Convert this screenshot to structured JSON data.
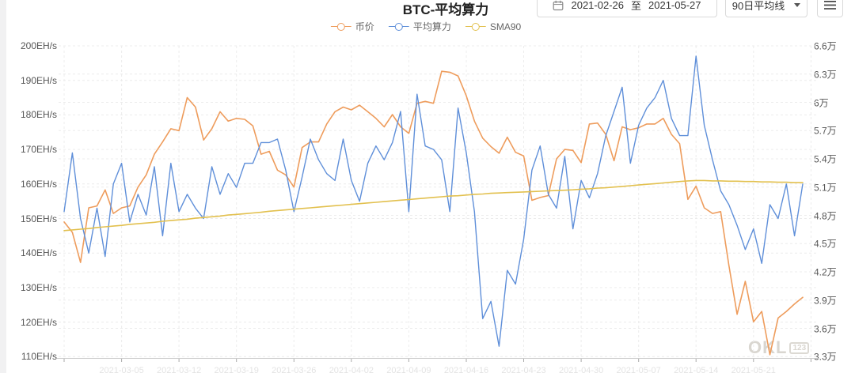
{
  "header": {
    "title": "BTC-平均算力",
    "date_picker": {
      "start": "2021-02-26",
      "separator": "至",
      "end": "2021-05-27"
    },
    "ma_selector": {
      "value": "90日平均线"
    }
  },
  "legend": [
    {
      "label": "币价",
      "color": "#EE9C5C"
    },
    {
      "label": "平均算力",
      "color": "#5F8FD9"
    },
    {
      "label": "SMA90",
      "color": "#E2C04E"
    }
  ],
  "watermark": {
    "text": "OKL",
    "badge": "123"
  },
  "chart_data": {
    "type": "line",
    "title": "BTC-平均算力",
    "x_start": "2021-02-26",
    "x_end": "2021-05-27",
    "x_points": 91,
    "x_tick_dates": [
      "2021-02-26",
      "2021-03-05",
      "2021-03-12",
      "2021-03-19",
      "2021-03-26",
      "2021-04-02",
      "2021-04-09",
      "2021-04-16",
      "2021-04-23",
      "2021-04-30",
      "2021-05-07",
      "2021-05-14",
      "2021-05-21",
      "2021-05-28"
    ],
    "grid": "dashed horizontal lines for both y axes, dashed weekly vertical lines",
    "legend_position": "top-center",
    "left_axis": {
      "unit": "EH/s",
      "min": 110,
      "max": 200,
      "tick_labels": [
        "200EH/s",
        "190EH/s",
        "180EH/s",
        "170EH/s",
        "160EH/s",
        "150EH/s",
        "140EH/s",
        "130EH/s",
        "120EH/s",
        "110EH/s"
      ]
    },
    "right_axis": {
      "unit": "万",
      "min": 3.3,
      "max": 6.6,
      "tick_labels": [
        "6.6万",
        "6.3万",
        "6万",
        "5.7万",
        "5.4万",
        "5.1万",
        "4.8万",
        "4.5万",
        "4.2万",
        "3.9万",
        "3.6万",
        "3.3万"
      ]
    },
    "series": [
      {
        "name": "币价",
        "axis": "right",
        "color": "#EE9C5C",
        "width": 1.6,
        "values": [
          4.73,
          4.62,
          4.3,
          4.88,
          4.9,
          5.07,
          4.82,
          4.88,
          4.9,
          5.1,
          5.23,
          5.45,
          5.58,
          5.72,
          5.7,
          6.05,
          5.95,
          5.6,
          5.72,
          5.9,
          5.8,
          5.83,
          5.82,
          5.75,
          5.45,
          5.48,
          5.28,
          5.23,
          5.1,
          5.52,
          5.58,
          5.58,
          5.77,
          5.9,
          5.95,
          5.92,
          5.97,
          5.9,
          5.83,
          5.74,
          5.87,
          5.74,
          5.67,
          5.99,
          6.01,
          5.99,
          6.33,
          6.32,
          6.28,
          6.07,
          5.8,
          5.62,
          5.53,
          5.46,
          5.63,
          5.47,
          5.43,
          4.96,
          4.99,
          5.01,
          5.4,
          5.5,
          5.49,
          5.36,
          5.77,
          5.78,
          5.66,
          5.38,
          5.74,
          5.71,
          5.73,
          5.77,
          5.77,
          5.83,
          5.66,
          5.56,
          4.97,
          5.11,
          4.88,
          4.82,
          4.84,
          4.27,
          3.75,
          4.1,
          3.67,
          3.78,
          3.32,
          3.71,
          3.78,
          3.86,
          3.93
        ]
      },
      {
        "name": "平均算力",
        "axis": "left",
        "color": "#5F8FD9",
        "width": 1.4,
        "values": [
          152,
          169,
          150,
          140,
          153,
          139,
          160,
          166,
          149,
          157,
          151,
          165,
          145,
          166,
          152,
          157,
          153,
          150,
          165,
          157,
          163,
          159,
          166,
          166,
          172,
          172,
          173,
          164,
          152,
          162,
          173,
          167,
          163,
          161,
          173,
          161,
          155,
          166,
          171,
          167,
          172,
          181,
          152,
          186,
          171,
          170,
          167,
          152,
          182,
          169,
          152,
          121,
          126,
          113,
          135,
          131,
          144,
          164,
          171,
          157,
          153,
          168,
          147,
          161,
          156,
          163,
          174,
          181,
          188,
          166,
          177,
          182,
          185,
          190,
          179,
          174,
          174,
          197,
          177,
          167,
          158,
          154,
          148,
          141,
          147,
          137,
          154,
          150,
          160,
          145,
          160
        ]
      },
      {
        "name": "SMA90",
        "axis": "left",
        "color": "#E2C04E",
        "width": 1.6,
        "values": [
          146.5,
          146.7,
          146.9,
          147.1,
          147.4,
          147.6,
          147.8,
          148.0,
          148.3,
          148.5,
          148.7,
          148.9,
          149.2,
          149.4,
          149.6,
          149.8,
          150.1,
          150.3,
          150.5,
          150.7,
          151.0,
          151.2,
          151.4,
          151.6,
          151.8,
          152.1,
          152.3,
          152.5,
          152.7,
          152.9,
          153.1,
          153.3,
          153.5,
          153.7,
          153.9,
          154.1,
          154.3,
          154.5,
          154.7,
          154.9,
          155.1,
          155.3,
          155.5,
          155.7,
          155.9,
          156.1,
          156.3,
          156.5,
          156.6,
          156.8,
          157.0,
          157.1,
          157.3,
          157.4,
          157.5,
          157.6,
          157.7,
          157.8,
          157.9,
          158.0,
          158.1,
          158.2,
          158.3,
          158.5,
          158.6,
          158.8,
          158.9,
          159.1,
          159.3,
          159.5,
          159.7,
          159.9,
          160.1,
          160.3,
          160.5,
          160.7,
          160.9,
          161.0,
          161.0,
          160.9,
          160.9,
          160.8,
          160.8,
          160.7,
          160.7,
          160.6,
          160.6,
          160.5,
          160.5,
          160.4,
          160.4
        ]
      }
    ]
  }
}
